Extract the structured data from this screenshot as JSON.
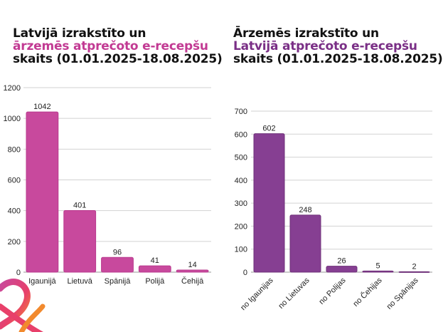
{
  "chart_data": [
    {
      "type": "bar",
      "title_lines": [
        "Latvijā izrakstīto un",
        "ārzemēs atprečoto e-recepšu",
        "skaits (01.01.2025-18.08.2025)"
      ],
      "categories": [
        "Igaunijā",
        "Lietuvā",
        "Spānijā",
        "Polijā",
        "Čehijā"
      ],
      "values": [
        1042,
        401,
        96,
        41,
        14
      ],
      "yticks": [
        0,
        200,
        400,
        600,
        800,
        1000,
        1200
      ],
      "ylim": [
        0,
        1200
      ],
      "color": "#c8499d",
      "grid": true
    },
    {
      "type": "bar",
      "title_lines": [
        "Ārzemēs izrakstīto un",
        "Latvijā  atprečoto e-recepšu",
        "skaits (01.01.2025-18.08.2025)"
      ],
      "categories": [
        "no Igaunijas",
        "no Lietuvas",
        "no Polijas",
        "no Čehijas",
        "no Spānijas"
      ],
      "values": [
        602,
        248,
        26,
        5,
        2
      ],
      "yticks": [
        0,
        100,
        200,
        300,
        400,
        500,
        600,
        700
      ],
      "ylim": [
        0,
        700
      ],
      "color": "#863f92",
      "grid": true
    }
  ],
  "colors": {
    "highlight_left": "#c23a93",
    "highlight_right": "#7a2f86"
  },
  "logo": {
    "icon": "heart-logo-icon"
  }
}
